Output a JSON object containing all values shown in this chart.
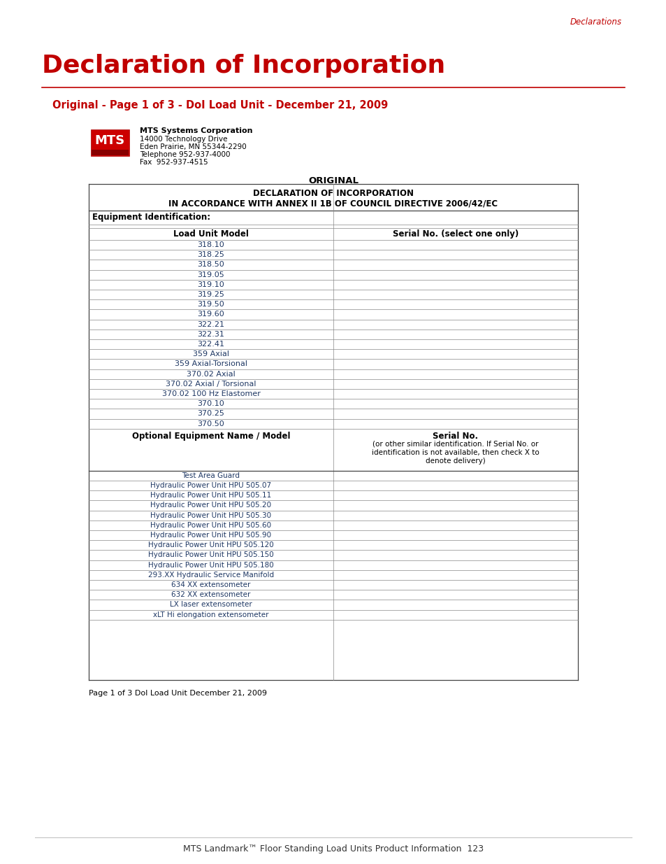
{
  "page_header": "Declarations",
  "main_title": "Declaration of Incorporation",
  "subtitle": "Original - Page 1 of 3 - DoI Load Unit - December 21, 2009",
  "company_name": "MTS Systems Corporation",
  "company_address": [
    "14000 Technology Drive",
    "Eden Prairie, MN 55344-2290",
    "Telephone 952-937-4000",
    "Fax  952-937-4515"
  ],
  "doc_header_line1": "DECLARATION OF INCORPORATION",
  "doc_header_line2": "IN ACCORDANCE WITH ANNEX II 1B OF COUNCIL DIRECTIVE 2006/42/EC",
  "section_header": "Equipment Identification:",
  "col1_header": "Load Unit Model",
  "col2_header": "Serial No. (select one only)",
  "load_units": [
    "318.10",
    "318.25",
    "318.50",
    "319.05",
    "319.10",
    "319.25",
    "319.50",
    "319.60",
    "322.21",
    "322.31",
    "322.41",
    "359 Axial",
    "359 Axial-Torsional",
    "370.02 Axial",
    "370.02 Axial / Torsional",
    "370.02 100 Hz Elastomer",
    "370.10",
    "370.25",
    "370.50"
  ],
  "opt_col1_header": "Optional Equipment Name / Model",
  "opt_col2_header_line1": "Serial No.",
  "opt_col2_header_rest": "(or other similar identification. If Serial No. or\nidentification is not available, then check X to\ndenote delivery)",
  "optional_items": [
    "Test Area Guard",
    "Hydraulic Power Unit HPU 505.07",
    "Hydraulic Power Unit HPU 505.11",
    "Hydraulic Power Unit HPU 505.20",
    "Hydraulic Power Unit HPU 505.30",
    "Hydraulic Power Unit HPU 505.60",
    "Hydraulic Power Unit HPU 505.90",
    "Hydraulic Power Unit HPU 505.120",
    "Hydraulic Power Unit HPU 505.150",
    "Hydraulic Power Unit HPU 505.180",
    "293.XX Hydraulic Service Manifold",
    "634 XX extensometer",
    "632 XX extensometer",
    "LX laser extensometer",
    "xLT Hi elongation extensometer"
  ],
  "footer_text": "Page 1 of 3 DoI Load Unit December 21, 2009",
  "bottom_footer": "MTS Landmark™ Floor Standing Load Units Product Information  123",
  "crimson": "#C00000",
  "table_text_color": "#1F3864",
  "bg_color": "#FFFFFF"
}
